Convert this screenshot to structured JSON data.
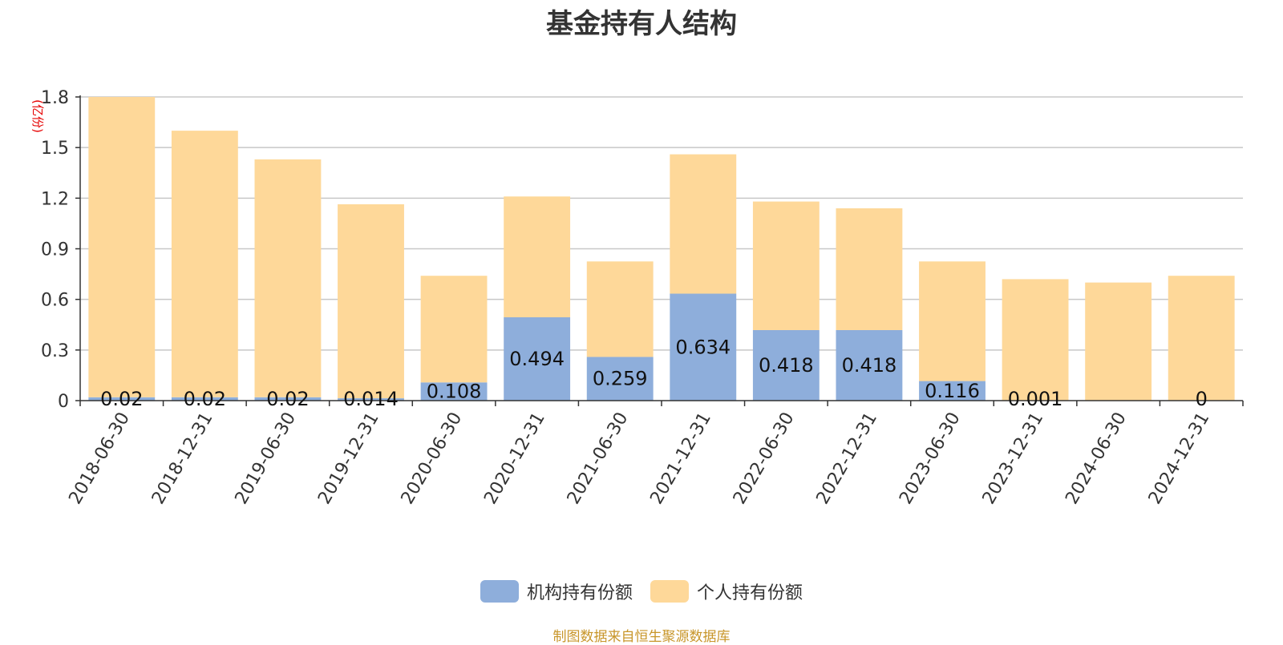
{
  "chart_data": {
    "type": "bar",
    "stacked": true,
    "title": "基金持有人结构",
    "ylabel": "(亿份)",
    "ylim": [
      0,
      1.8
    ],
    "yticks": [
      "0",
      "0.3",
      "0.6",
      "0.9",
      "1.2",
      "1.5",
      "1.8"
    ],
    "grid": true,
    "legend_position": "bottom-center",
    "categories": [
      "2018-06-30",
      "2018-12-31",
      "2019-06-30",
      "2019-12-31",
      "2020-06-30",
      "2020-12-31",
      "2021-06-30",
      "2021-12-31",
      "2022-06-30",
      "2022-12-31",
      "2023-06-30",
      "2023-12-31",
      "2024-06-30",
      "2024-12-31"
    ],
    "series": [
      {
        "name": "机构持有份额",
        "color": "#8eaedb",
        "values": [
          0.02,
          0.02,
          0.02,
          0.014,
          0.108,
          0.494,
          0.259,
          0.634,
          0.418,
          0.418,
          0.116,
          0.001,
          0,
          0
        ],
        "labels": [
          "0.02",
          "0.02",
          "0.02",
          "0.014",
          "0.108",
          "0.494",
          "0.259",
          "0.634",
          "0.418",
          "0.418",
          "0.116",
          "0.001",
          "",
          "0"
        ]
      },
      {
        "name": "个人持有份额",
        "color": "#fed899",
        "values": [
          1.78,
          1.58,
          1.41,
          1.15,
          0.632,
          0.716,
          0.566,
          0.826,
          0.762,
          0.722,
          0.709,
          0.719,
          0.7,
          0.74
        ]
      }
    ]
  },
  "source_note": "制图数据来自恒生聚源数据库"
}
